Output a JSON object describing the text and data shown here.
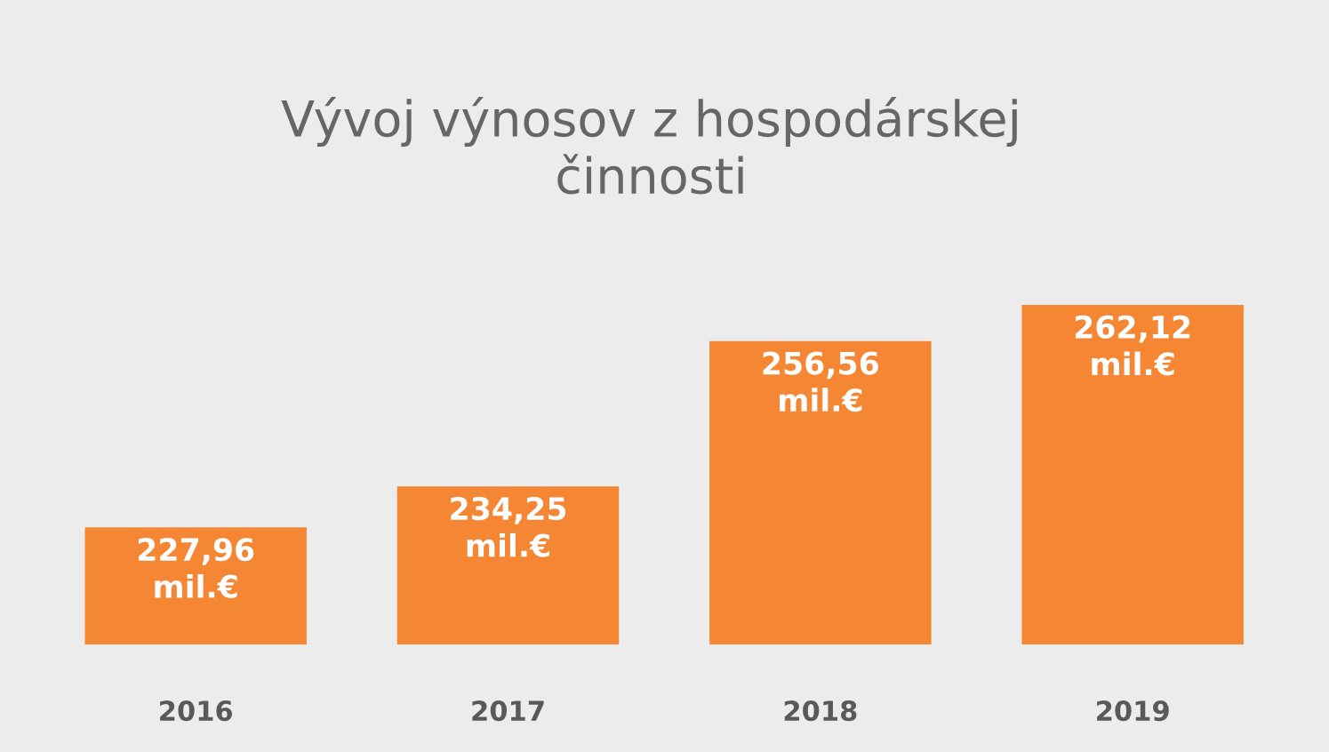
{
  "chart_data": {
    "type": "bar",
    "title": "Vývoj výnosov z hospodárskej\nčinnosti",
    "categories": [
      "2016",
      "2017",
      "2018",
      "2019"
    ],
    "values": [
      227.96,
      234.25,
      256.56,
      262.12
    ],
    "value_labels": [
      "227,96\nmil.€",
      "234,25\nmil.€",
      "256,56\nmil.€",
      "262,12\nmil.€"
    ],
    "color": "#f48634",
    "ylim": [
      210,
      262.12
    ],
    "tick_labels": "x",
    "grid": false,
    "legend": false
  }
}
